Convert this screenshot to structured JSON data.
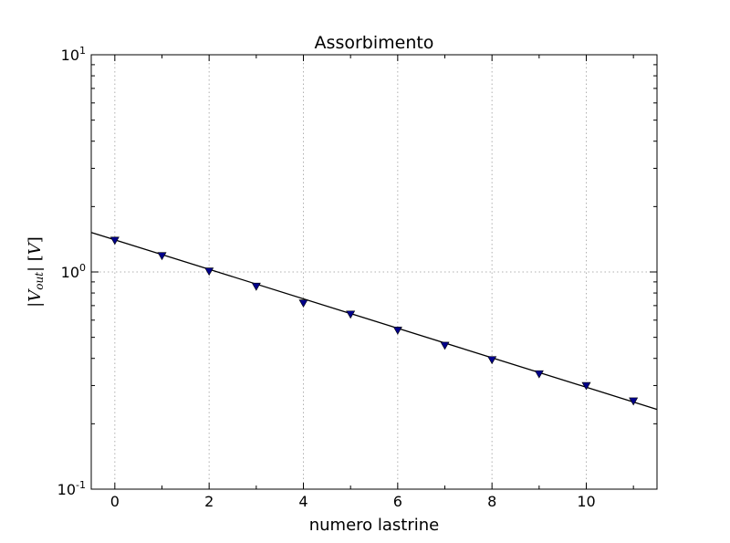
{
  "chart_data": {
    "type": "scatter",
    "title": "Assorbimento",
    "xlabel": "numero lastrine",
    "ylabel_parts": [
      "|",
      "V",
      "out",
      "| [",
      "V",
      "]"
    ],
    "xlim": [
      -0.5,
      11.5
    ],
    "ylim": [
      0.1,
      10
    ],
    "yscale": "log",
    "grid": true,
    "x_ticks": [
      0,
      2,
      4,
      6,
      8,
      10
    ],
    "y_ticks": [
      {
        "value": 0.1,
        "base": "10",
        "exp": "-1"
      },
      {
        "value": 1,
        "base": "10",
        "exp": "0"
      },
      {
        "value": 10,
        "base": "10",
        "exp": "1"
      }
    ],
    "series": [
      {
        "marker": "triangle-down",
        "color": "#00008b",
        "x": [
          0,
          1,
          2,
          3,
          4,
          5,
          6,
          7,
          8,
          9,
          10,
          11
        ],
        "y": [
          1.4,
          1.19,
          1.01,
          0.86,
          0.72,
          0.64,
          0.54,
          0.46,
          0.395,
          0.34,
          0.3,
          0.255
        ]
      }
    ],
    "fit_line": {
      "color": "#000000",
      "x": [
        -0.5,
        11.5
      ],
      "y": [
        1.52,
        0.233
      ]
    }
  }
}
